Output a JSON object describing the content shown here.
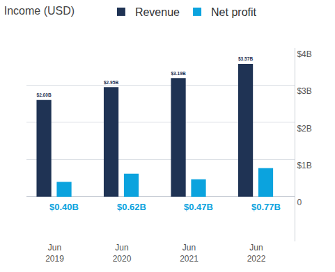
{
  "chart_data": {
    "type": "bar",
    "title": "Income (USD)",
    "categories": [
      "Jun 2019",
      "Jun 2020",
      "Jun 2021",
      "Jun 2022"
    ],
    "series": [
      {
        "name": "Revenue",
        "color": "#1f3354",
        "values": [
          2.6,
          2.95,
          3.19,
          3.57
        ],
        "value_labels": [
          "$2.60B",
          "$2.95B",
          "$3.19B",
          "$3.57B"
        ]
      },
      {
        "name": "Net profit",
        "color": "#0ba3de",
        "values": [
          0.4,
          0.62,
          0.47,
          0.77
        ],
        "value_labels": [
          "$0.40B",
          "$0.62B",
          "$0.47B",
          "$0.77B"
        ]
      }
    ],
    "ylim": [
      -1.2,
      4
    ],
    "yticks": [
      0,
      {
        "value": 1,
        "label": "$1B"
      },
      {
        "value": 2,
        "label": "$2B"
      },
      {
        "value": 3,
        "label": "$3B"
      },
      {
        "value": 4,
        "label": "$4B"
      }
    ],
    "grid": true,
    "data_labels": true,
    "legend": "top"
  }
}
